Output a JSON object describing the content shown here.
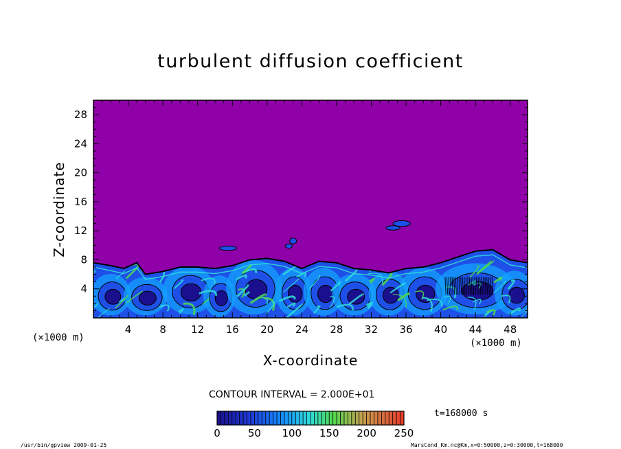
{
  "chart_data": {
    "type": "heatmap",
    "title": "turbulent diffusion coefficient",
    "xlabel": "X-coordinate",
    "ylabel": "Z-coordinate",
    "x_unit": "(×1000 m)",
    "z_unit": "(×1000 m)",
    "xlim": [
      0,
      50
    ],
    "ylim": [
      0,
      30
    ],
    "x_ticks": [
      4,
      8,
      12,
      16,
      20,
      24,
      28,
      32,
      36,
      40,
      44,
      48
    ],
    "y_ticks": [
      4,
      8,
      12,
      16,
      20,
      24,
      28
    ],
    "contour_interval": "CONTOUR INTERVAL = 2.000E+01",
    "colorbar_ticks": [
      0,
      50,
      100,
      150,
      200,
      250
    ],
    "colorbar_range": [
      0,
      250
    ],
    "background_value": 0,
    "turbulent_layer_top_profile": {
      "x": [
        0,
        2,
        3.5,
        5,
        6,
        8,
        10,
        12,
        14,
        16,
        18,
        20,
        22,
        24,
        26,
        28,
        30,
        32,
        34,
        36,
        38,
        40,
        42,
        44,
        46,
        48,
        50
      ],
      "z": [
        7.6,
        7.2,
        6.8,
        7.6,
        6.0,
        6.4,
        7.0,
        7.0,
        6.8,
        7.2,
        8.0,
        8.2,
        7.8,
        6.8,
        7.8,
        7.6,
        6.8,
        6.6,
        6.2,
        6.8,
        7.0,
        7.6,
        8.4,
        9.2,
        9.4,
        8.0,
        7.6
      ]
    },
    "time_label": "t=168000 s",
    "footer_left": "/usr/bin/gpview   2009-01-25",
    "footer_right": "MarsCond_Km.nc@Km,x=0:50000,z=0:30000,t=168000",
    "colors": {
      "background_field": "#8f00a8",
      "low": "#1a0f8c",
      "mid_low": "#1e50e8",
      "mid": "#14a0ff",
      "cyan": "#30dcd8",
      "green": "#50d850",
      "high": "#e85a2a",
      "contour": "#000000"
    }
  }
}
